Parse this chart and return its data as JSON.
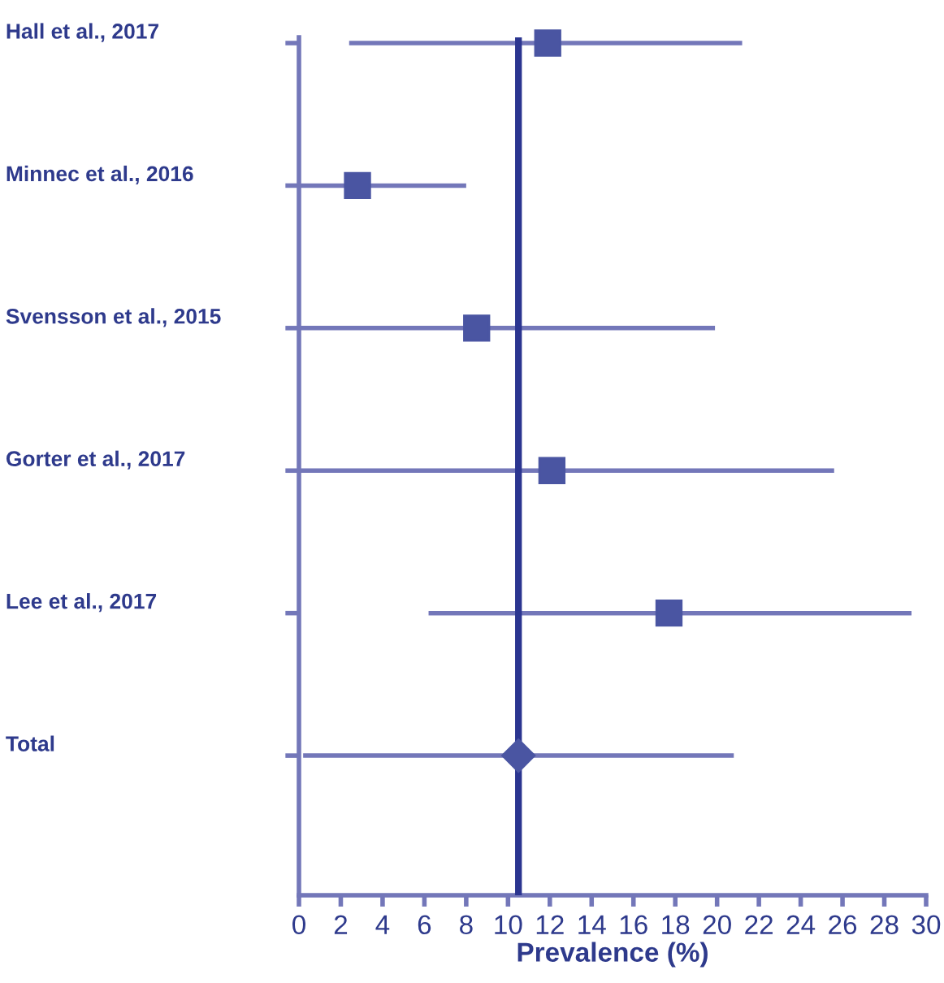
{
  "chart_data": {
    "type": "scatter",
    "orientation": "horizontal",
    "xlabel": "Prevalence (%)",
    "categories": [
      "Hall et al., 2017",
      "Minnec et al., 2016",
      "Svensson et al., 2015",
      "Gorter et al., 2017",
      "Lee et al., 2017",
      "Total"
    ],
    "series": [
      {
        "color": "#4a55a2",
        "marker": "square",
        "values": [
          11.9,
          2.8,
          8.5,
          12.1,
          17.7,
          null
        ],
        "errors": [
          [
            2.4,
            21.2
          ],
          [
            0,
            8.0
          ],
          [
            0,
            19.9
          ],
          [
            0,
            25.6
          ],
          [
            6.2,
            29.3
          ],
          null
        ]
      },
      {
        "color": "#4a55a2",
        "marker": "diamond",
        "values": [
          null,
          null,
          null,
          null,
          null,
          10.5
        ],
        "errors": [
          null,
          null,
          null,
          null,
          null,
          [
            0.2,
            20.8
          ]
        ]
      }
    ],
    "ref_lines": [
      {
        "axis": "x",
        "value": 10.5,
        "color": "#2b3590"
      }
    ],
    "xlim": [
      0,
      30
    ],
    "xticks": [
      0,
      2,
      4,
      6,
      8,
      10,
      12,
      14,
      16,
      18,
      20,
      22,
      24,
      26,
      28,
      30
    ],
    "grid": false,
    "legend": false
  }
}
